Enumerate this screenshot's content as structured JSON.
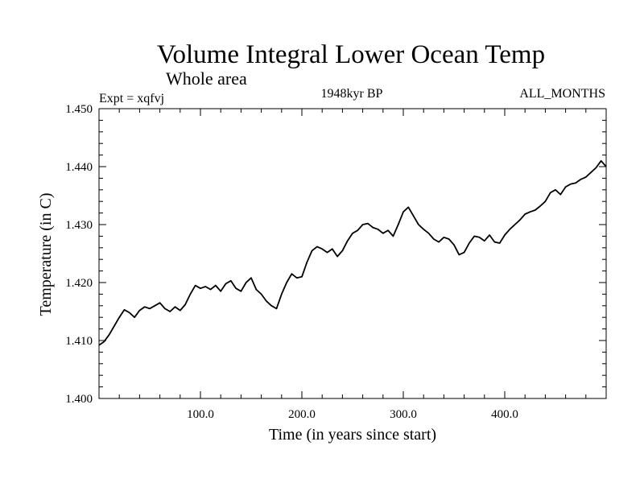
{
  "chart_data": {
    "type": "line",
    "title": "Volume Integral Lower Ocean Temp",
    "subtitle": "Whole area",
    "annotations": {
      "left": "Expt = xqfvj",
      "center": "1948kyr BP",
      "right": "ALL_MONTHS"
    },
    "xlabel": "Time (in years since start)",
    "ylabel": "Temperature (in C)",
    "xlim": [
      0,
      500
    ],
    "ylim": [
      1.4,
      1.45
    ],
    "xticks": [
      100,
      200,
      300,
      400
    ],
    "xtick_labels": [
      "100.0",
      "200.0",
      "300.0",
      "400.0"
    ],
    "yticks": [
      1.4,
      1.41,
      1.42,
      1.43,
      1.44,
      1.45
    ],
    "ytick_labels": [
      "1.400",
      "1.410",
      "1.420",
      "1.430",
      "1.440",
      "1.450"
    ],
    "grid": false,
    "series": [
      {
        "name": "Volume Integral Lower Ocean Temp",
        "color": "#000000",
        "x": [
          0,
          5,
          10,
          15,
          20,
          25,
          30,
          35,
          40,
          45,
          50,
          55,
          60,
          65,
          70,
          75,
          80,
          85,
          90,
          95,
          100,
          105,
          110,
          115,
          120,
          125,
          130,
          135,
          140,
          145,
          150,
          155,
          160,
          165,
          170,
          175,
          180,
          185,
          190,
          195,
          200,
          205,
          210,
          215,
          220,
          225,
          230,
          235,
          240,
          245,
          250,
          255,
          260,
          265,
          270,
          275,
          280,
          285,
          290,
          295,
          300,
          305,
          310,
          315,
          320,
          325,
          330,
          335,
          340,
          345,
          350,
          355,
          360,
          365,
          370,
          375,
          380,
          385,
          390,
          395,
          400,
          405,
          410,
          415,
          420,
          425,
          430,
          435,
          440,
          445,
          450,
          455,
          460,
          465,
          470,
          475,
          480,
          485,
          490,
          495,
          500
        ],
        "y": [
          1.4092,
          1.4098,
          1.411,
          1.4125,
          1.414,
          1.4153,
          1.4148,
          1.414,
          1.4152,
          1.4158,
          1.4155,
          1.416,
          1.4165,
          1.4155,
          1.415,
          1.4158,
          1.4152,
          1.4162,
          1.418,
          1.4195,
          1.419,
          1.4193,
          1.4188,
          1.4195,
          1.4185,
          1.4198,
          1.4203,
          1.419,
          1.4185,
          1.42,
          1.4208,
          1.4188,
          1.418,
          1.4168,
          1.416,
          1.4155,
          1.418,
          1.42,
          1.4215,
          1.4208,
          1.421,
          1.4235,
          1.4255,
          1.4262,
          1.4258,
          1.4252,
          1.4258,
          1.4245,
          1.4255,
          1.4272,
          1.4285,
          1.429,
          1.43,
          1.4302,
          1.4295,
          1.4292,
          1.4285,
          1.429,
          1.428,
          1.43,
          1.4322,
          1.433,
          1.4315,
          1.43,
          1.4292,
          1.4285,
          1.4275,
          1.427,
          1.4278,
          1.4275,
          1.4265,
          1.4248,
          1.4252,
          1.4268,
          1.428,
          1.4278,
          1.4272,
          1.4282,
          1.427,
          1.4268,
          1.4282,
          1.4292,
          1.43,
          1.4308,
          1.4318,
          1.4322,
          1.4325,
          1.4332,
          1.434,
          1.4355,
          1.436,
          1.4352,
          1.4365,
          1.437,
          1.4372,
          1.4378,
          1.4382,
          1.439,
          1.4398,
          1.441,
          1.44
        ]
      }
    ]
  }
}
